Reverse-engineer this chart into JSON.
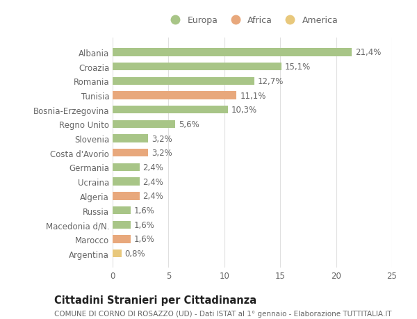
{
  "countries": [
    "Albania",
    "Croazia",
    "Romania",
    "Tunisia",
    "Bosnia-Erzegovina",
    "Regno Unito",
    "Slovenia",
    "Costa d'Avorio",
    "Germania",
    "Ucraina",
    "Algeria",
    "Russia",
    "Macedonia d/N.",
    "Marocco",
    "Argentina"
  ],
  "values": [
    21.4,
    15.1,
    12.7,
    11.1,
    10.3,
    5.6,
    3.2,
    3.2,
    2.4,
    2.4,
    2.4,
    1.6,
    1.6,
    1.6,
    0.8
  ],
  "labels": [
    "21,4%",
    "15,1%",
    "12,7%",
    "11,1%",
    "10,3%",
    "5,6%",
    "3,2%",
    "3,2%",
    "2,4%",
    "2,4%",
    "2,4%",
    "1,6%",
    "1,6%",
    "1,6%",
    "0,8%"
  ],
  "continents": [
    "Europa",
    "Europa",
    "Europa",
    "Africa",
    "Europa",
    "Europa",
    "Europa",
    "Africa",
    "Europa",
    "Europa",
    "Africa",
    "Europa",
    "Europa",
    "Africa",
    "America"
  ],
  "colors": {
    "Europa": "#a8c587",
    "Africa": "#e8a87c",
    "America": "#e8c87c"
  },
  "legend_items": [
    {
      "label": "Europa",
      "color": "#a8c587"
    },
    {
      "label": "Africa",
      "color": "#e8a87c"
    },
    {
      "label": "America",
      "color": "#e8c87c"
    }
  ],
  "xlim": [
    0,
    25
  ],
  "title": "Cittadini Stranieri per Cittadinanza",
  "subtitle": "COMUNE DI CORNO DI ROSAZZO (UD) - Dati ISTAT al 1° gennaio - Elaborazione TUTTITALIA.IT",
  "bg_color": "#ffffff",
  "grid_color": "#e0e0e0",
  "bar_height": 0.55,
  "label_fontsize": 8.5,
  "tick_fontsize": 8.5,
  "title_fontsize": 10.5,
  "subtitle_fontsize": 7.5
}
